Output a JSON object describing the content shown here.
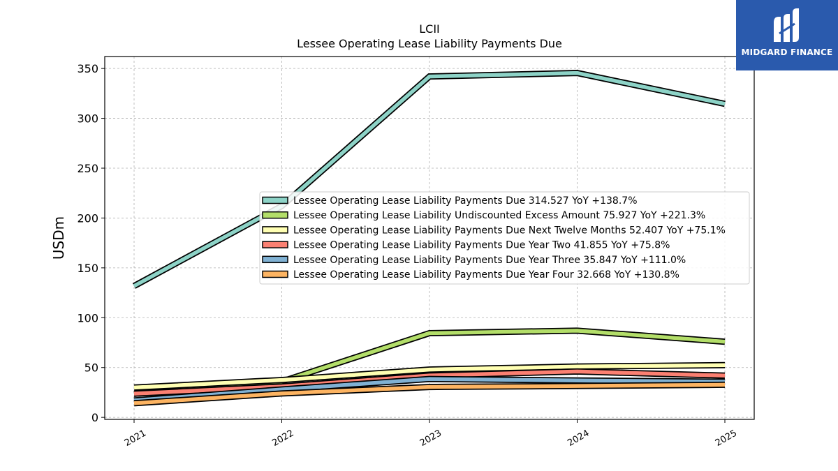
{
  "brand": {
    "name": "MIDGARD FINANCE",
    "logo_icon": "midgard-logo-icon",
    "background": "#2a5aad"
  },
  "chart_data": {
    "type": "line",
    "title": "LCII",
    "subtitle": "Lessee Operating Lease Liability Payments Due",
    "xlabel": "",
    "ylabel": "USDm",
    "x": [
      "2021",
      "2022",
      "2023",
      "2024",
      "2025"
    ],
    "ylim": [
      -2,
      362
    ],
    "yticks": [
      0,
      50,
      100,
      150,
      200,
      250,
      300,
      350
    ],
    "grid": true,
    "legend_position": "center-right",
    "series": [
      {
        "name": "Lessee Operating Lease Liability Payments Due",
        "legend": "Lessee Operating Lease Liability Payments Due  314.527 YoY +138.7%",
        "values": [
          131.8,
          212,
          342,
          345.5,
          314.5
        ],
        "color": "#8dd3c7"
      },
      {
        "name": "Lessee Operating Lease Liability Undiscounted Excess Amount",
        "legend": "Lessee Operating Lease Liability Undiscounted Excess Amount  75.927 YoY +221.3%",
        "values": [
          23.6,
          36,
          84.5,
          87,
          75.9
        ],
        "color": "#b3de69"
      },
      {
        "name": "Lessee Operating Lease Liability Payments Due Next Twelve Months",
        "legend": "Lessee Operating Lease Liability Payments Due Next Twelve Months  52.407 YoY +75.1%",
        "values": [
          29.9,
          37.5,
          48,
          51,
          52.4
        ],
        "color": "#ffffb3"
      },
      {
        "name": "Lessee Operating Lease Liability Payments Due Year Two",
        "legend": "Lessee Operating Lease Liability Payments Due Year Two  41.855 YoY +75.8%",
        "values": [
          23.8,
          31,
          42,
          46,
          41.9
        ],
        "color": "#fb8072"
      },
      {
        "name": "Lessee Operating Lease Liability Payments Due Year Three",
        "legend": "Lessee Operating Lease Liability Payments Due Year Three  35.847 YoY +111.0%",
        "values": [
          17,
          28,
          38.5,
          37,
          35.8
        ],
        "color": "#80b1d3"
      },
      {
        "name": "Lessee Operating Lease Liability Payments Due Year Four",
        "legend": "Lessee Operating Lease Liability Payments Due Year Four  32.668 YoY +130.8%",
        "values": [
          14.2,
          24,
          30.5,
          31.5,
          32.7
        ],
        "color": "#fdb462"
      }
    ]
  }
}
